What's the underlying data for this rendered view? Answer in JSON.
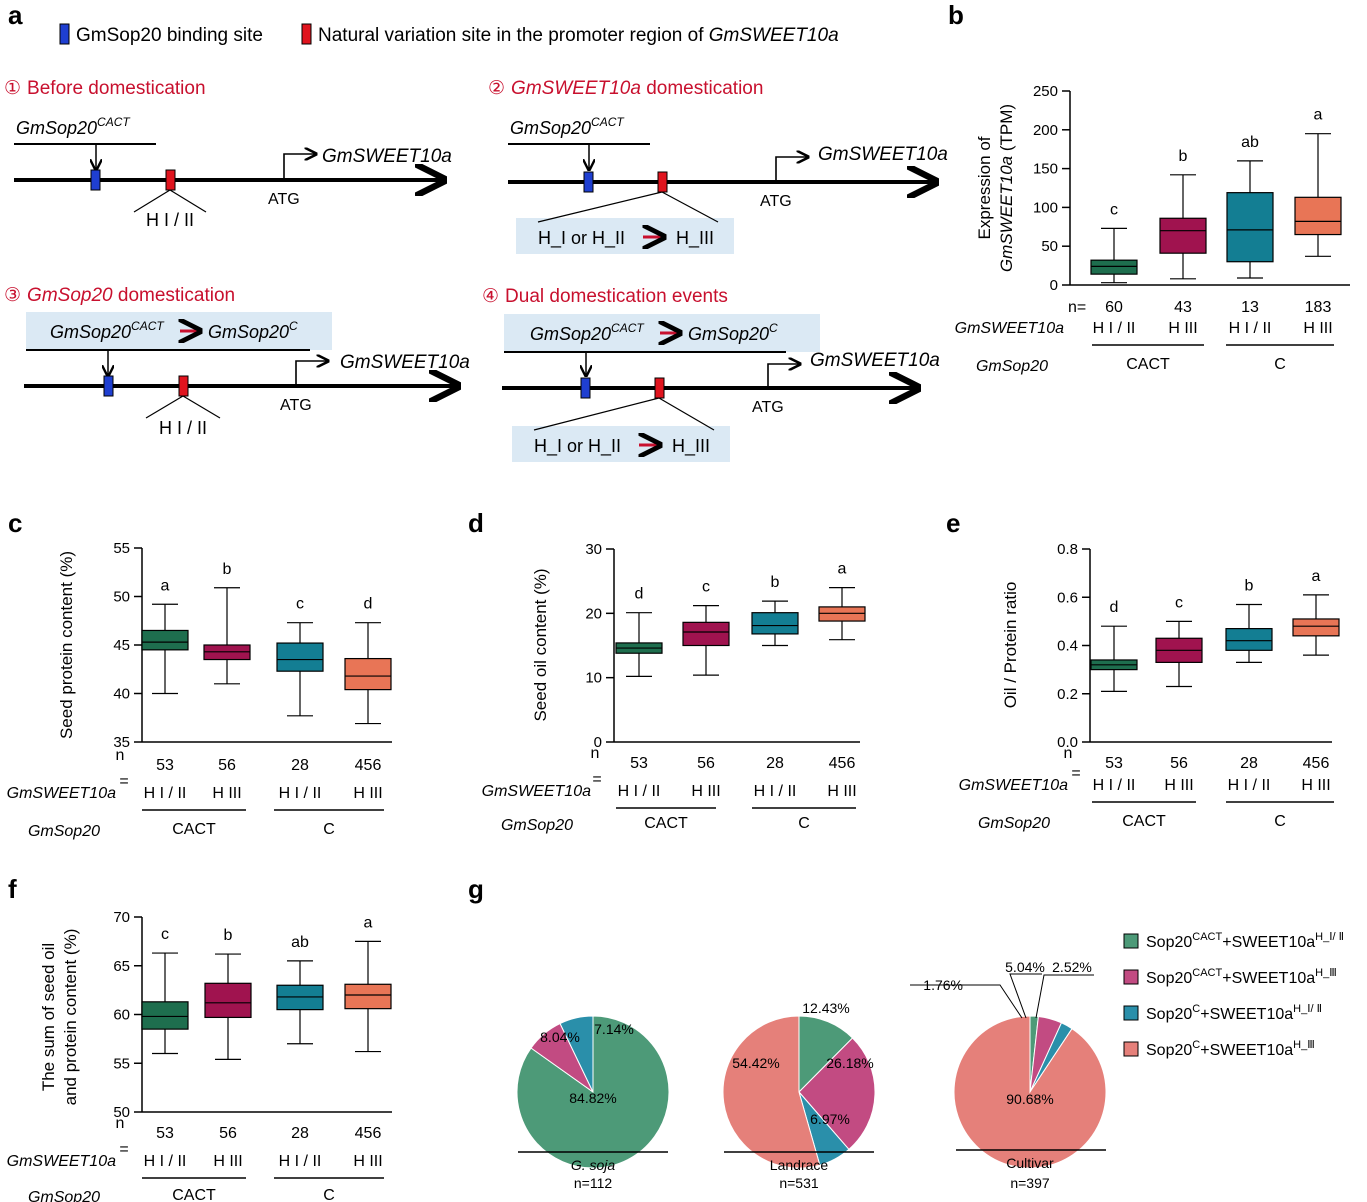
{
  "panel_letters": [
    "a",
    "b",
    "c",
    "d",
    "e",
    "f",
    "g"
  ],
  "panel_a": {
    "legend": {
      "binding_site": "GmSop20 binding site",
      "variation_prefix": "Natural variation site in the promoter region of ",
      "variation_gene": "GmSWEET10a",
      "binding_color": "#1f3fd1",
      "variation_color": "#e0141e"
    },
    "scenarios": [
      {
        "num": "①",
        "title_pre": "Before domestication",
        "title_it": "",
        "title_post": "",
        "factor": "GmSop20",
        "factor_sup": "CACT",
        "gene": "GmSWEET10a",
        "atg": "ATG",
        "hap": "H I / II"
      },
      {
        "num": "②",
        "title_pre": "",
        "title_it": "GmSWEET10a",
        "title_post": " domestication",
        "factor": "GmSop20",
        "factor_sup": "CACT",
        "gene": "GmSWEET10a",
        "atg": "ATG",
        "hap_from": "H_I or H_II",
        "hap_to": "H_III"
      },
      {
        "num": "③",
        "title_pre": "",
        "title_it": "GmSop20",
        "title_post": " domestication",
        "factor_from": "GmSop20",
        "factor_from_sup": "CACT",
        "factor_to": "GmSop20",
        "factor_to_sup": "C",
        "gene": "GmSWEET10a",
        "atg": "ATG",
        "hap": "H I / II"
      },
      {
        "num": "④",
        "title_pre": "Dual domestication events",
        "title_it": "",
        "title_post": "",
        "factor_from": "GmSop20",
        "factor_from_sup": "CACT",
        "factor_to": "GmSop20",
        "factor_to_sup": "C",
        "gene": "GmSWEET10a",
        "atg": "ATG",
        "hap_from": "H_I or H_II",
        "hap_to": "H_III"
      }
    ]
  },
  "group_labels": {
    "gene_row": "GmSWEET10a",
    "sop_row": "GmSop20",
    "haps": [
      "H I / II",
      "H III",
      "H I / II",
      "H III"
    ],
    "sops": [
      "CACT",
      "C"
    ]
  },
  "colors": {
    "series": [
      "#1e6e4e",
      "#a0134f",
      "#137e93",
      "#e87556"
    ]
  },
  "chart_data": [
    {
      "type": "box",
      "panel": "b",
      "ylabel_pre": "Expression of",
      "ylabel_it": "GmSWEET10a",
      "ylabel_post": " (TPM)",
      "ylim": [
        0,
        250
      ],
      "ticks": [
        0,
        50,
        100,
        150,
        200,
        250
      ],
      "n_label": "n=",
      "n": [
        "60",
        "43",
        "13",
        "183"
      ],
      "letters": [
        "c",
        "b",
        "ab",
        "a"
      ],
      "boxes": [
        {
          "min": 3,
          "q1": 14,
          "median": 24,
          "q3": 32,
          "max": 73
        },
        {
          "min": 8,
          "q1": 41,
          "median": 70,
          "q3": 86,
          "max": 142
        },
        {
          "min": 9,
          "q1": 30,
          "median": 71,
          "q3": 119,
          "max": 160
        },
        {
          "min": 37,
          "q1": 65,
          "median": 82,
          "q3": 113,
          "max": 195
        }
      ]
    },
    {
      "type": "box",
      "panel": "c",
      "ylabel": "Seed protein content (%)",
      "ylim": [
        35,
        55
      ],
      "ticks": [
        35,
        40,
        45,
        50,
        55
      ],
      "n_label": "n",
      "n": [
        "53",
        "56",
        "28",
        "456"
      ],
      "eq": "=",
      "letters": [
        "a",
        "b",
        "c",
        "d"
      ],
      "boxes": [
        {
          "min": 40,
          "q1": 44.5,
          "median": 45.3,
          "q3": 46.5,
          "max": 49.2
        },
        {
          "min": 41,
          "q1": 43.5,
          "median": 44.3,
          "q3": 45,
          "max": 50.9
        },
        {
          "min": 37.7,
          "q1": 42.3,
          "median": 43.5,
          "q3": 45.2,
          "max": 47.3
        },
        {
          "min": 36.9,
          "q1": 40.4,
          "median": 41.8,
          "q3": 43.6,
          "max": 47.3
        }
      ]
    },
    {
      "type": "box",
      "panel": "d",
      "ylabel": "Seed oil content (%)",
      "ylim": [
        0,
        30
      ],
      "ticks": [
        0,
        10,
        20,
        30
      ],
      "n_label": "n",
      "n": [
        "53",
        "56",
        "28",
        "456"
      ],
      "eq": "=",
      "letters": [
        "d",
        "c",
        "b",
        "a"
      ],
      "boxes": [
        {
          "min": 10.2,
          "q1": 13.8,
          "median": 14.6,
          "q3": 15.4,
          "max": 20.1
        },
        {
          "min": 10.4,
          "q1": 15,
          "median": 17.1,
          "q3": 18.6,
          "max": 21.2
        },
        {
          "min": 15,
          "q1": 16.8,
          "median": 18.1,
          "q3": 20.1,
          "max": 21.9
        },
        {
          "min": 15.9,
          "q1": 18.8,
          "median": 20,
          "q3": 21,
          "max": 24
        }
      ]
    },
    {
      "type": "box",
      "panel": "e",
      "ylabel": "Oil / Protein ratio",
      "ylim": [
        0,
        0.8
      ],
      "ticks": [
        0,
        0.2,
        0.4,
        0.6,
        0.8
      ],
      "tick_labels": [
        "0.0",
        "0.2",
        "0.4",
        "0.6",
        "0.8"
      ],
      "n_label": "n",
      "n": [
        "53",
        "56",
        "28",
        "456"
      ],
      "eq": "=",
      "letters": [
        "d",
        "c",
        "b",
        "a"
      ],
      "boxes": [
        {
          "min": 0.21,
          "q1": 0.3,
          "median": 0.32,
          "q3": 0.34,
          "max": 0.48
        },
        {
          "min": 0.23,
          "q1": 0.33,
          "median": 0.38,
          "q3": 0.43,
          "max": 0.5
        },
        {
          "min": 0.33,
          "q1": 0.38,
          "median": 0.42,
          "q3": 0.47,
          "max": 0.57
        },
        {
          "min": 0.36,
          "q1": 0.44,
          "median": 0.48,
          "q3": 0.51,
          "max": 0.61
        }
      ]
    },
    {
      "type": "box",
      "panel": "f",
      "ylabel_l1": "The sum of seed oil",
      "ylabel_l2": "and protein content (%)",
      "ylim": [
        50,
        70
      ],
      "ticks": [
        50,
        55,
        60,
        65,
        70
      ],
      "n_label": "n",
      "n": [
        "53",
        "56",
        "28",
        "456"
      ],
      "eq": "=",
      "letters": [
        "c",
        "b",
        "ab",
        "a"
      ],
      "boxes": [
        {
          "min": 56,
          "q1": 58.5,
          "median": 59.8,
          "q3": 61.3,
          "max": 66.3
        },
        {
          "min": 55.4,
          "q1": 59.7,
          "median": 61.2,
          "q3": 63.2,
          "max": 66.2
        },
        {
          "min": 57,
          "q1": 60.5,
          "median": 61.8,
          "q3": 63,
          "max": 65.5
        },
        {
          "min": 56.2,
          "q1": 60.6,
          "median": 62,
          "q3": 63.1,
          "max": 67.5
        }
      ]
    },
    {
      "type": "pie",
      "panel": "g",
      "legend": [
        {
          "a": "Sop20",
          "a_sup": "CACT",
          "b": "+SWEET10a",
          "b_sup": "H_Ⅰ/ Ⅱ"
        },
        {
          "a": "Sop20",
          "a_sup": "CACT",
          "b": "+SWEET10a",
          "b_sup": "H_Ⅲ"
        },
        {
          "a": "Sop20",
          "a_sup": "C",
          "b": "+SWEET10a",
          "b_sup": "H_Ⅰ/ Ⅱ"
        },
        {
          "a": "Sop20",
          "a_sup": "C",
          "b": "+SWEET10a",
          "b_sup": "H_Ⅲ"
        }
      ],
      "colors": [
        "#4d9a78",
        "#c24b82",
        "#2a8faa",
        "#e5807a"
      ],
      "pies": [
        {
          "name": "G. soja",
          "italic": true,
          "n": "n=112",
          "values": [
            84.82,
            8.04,
            7.14,
            0
          ],
          "labels": [
            "84.82%",
            "8.04%",
            "7.14%",
            ""
          ]
        },
        {
          "name": "Landrace",
          "italic": false,
          "n": "n=531",
          "values": [
            12.43,
            26.18,
            6.97,
            54.42
          ],
          "labels": [
            "12.43%",
            "26.18%",
            "6.97%",
            "54.42%"
          ]
        },
        {
          "name": "Cultivar",
          "italic": false,
          "n": "n=397",
          "values": [
            1.76,
            5.04,
            2.52,
            90.68
          ],
          "labels": [
            "1.76%",
            "5.04%",
            "2.52%",
            "90.68%"
          ]
        }
      ]
    }
  ]
}
